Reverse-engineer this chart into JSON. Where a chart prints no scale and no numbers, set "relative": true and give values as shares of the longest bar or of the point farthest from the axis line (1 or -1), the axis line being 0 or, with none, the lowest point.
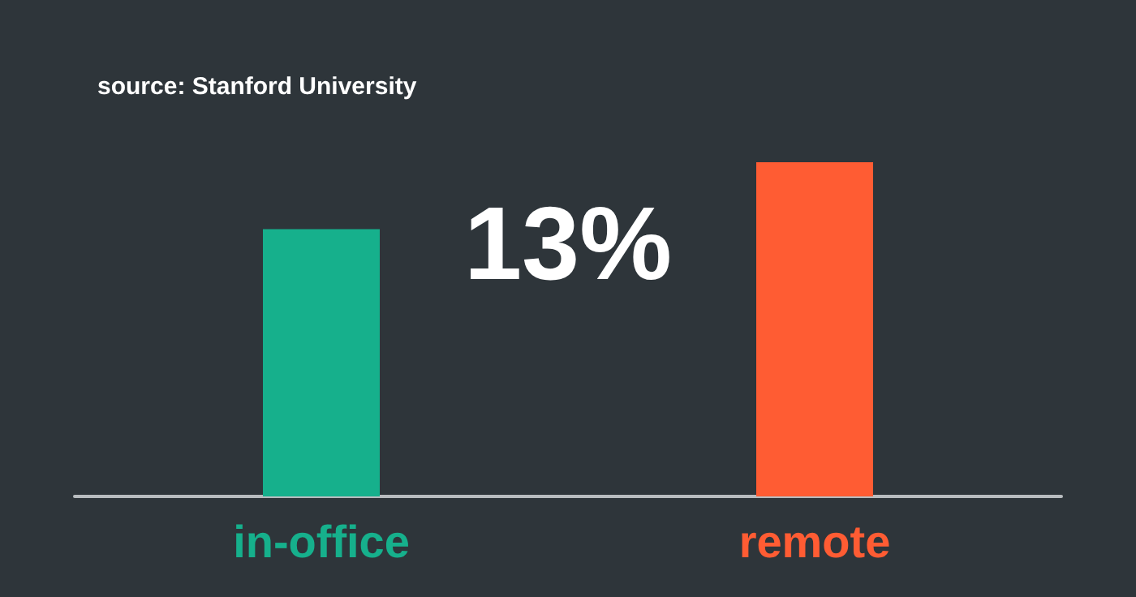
{
  "chart_data": {
    "type": "bar",
    "relative": true,
    "categories": [
      "in-office",
      "remote"
    ],
    "values": [
      0.8,
      1
    ],
    "colors": [
      "#16b08c",
      "#ff5c33"
    ],
    "annotations": [
      "source: Stanford University",
      "13%"
    ]
  }
}
